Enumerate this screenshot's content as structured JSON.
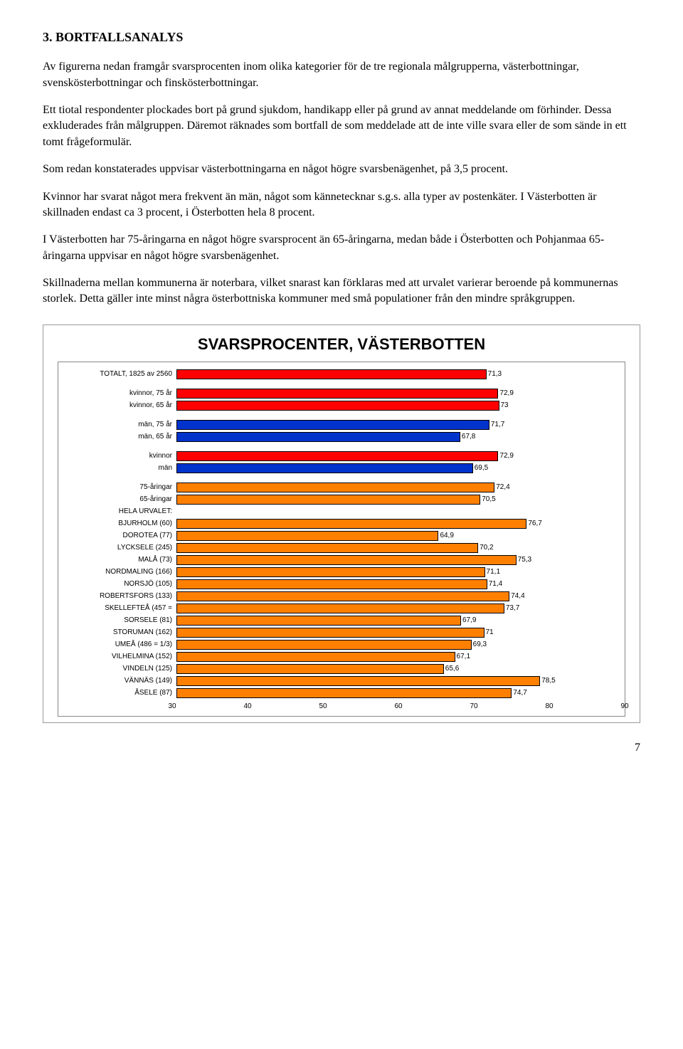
{
  "heading": "3. BORTFALLSANALYS",
  "paragraphs": [
    "Av figurerna nedan framgår svarsprocenten inom olika kategorier för de tre regionala målgrupperna, västerbottningar, svenskösterbottningar och finskösterbottningar.",
    "Ett tiotal respondenter plockades bort på grund sjukdom, handikapp eller på grund av annat meddelande om förhinder. Dessa exkluderades från målgruppen. Däremot räknades som bortfall de som meddelade att de inte ville svara eller de som sände in ett tomt frågeformulär.",
    "Som redan konstaterades uppvisar västerbottningarna en något högre svarsbenägenhet, på 3,5 procent.",
    "Kvinnor har svarat något mera frekvent än män, något som kännetecknar s.g.s. alla typer av postenkäter. I Västerbotten är skillnaden endast ca 3 procent, i Österbotten hela 8 procent.",
    "I Västerbotten har 75-åringarna en något högre svarsprocent än 65-åringarna, medan både i Österbotten och Pohjanmaa 65-åringarna uppvisar en något högre svarsbenägenhet.",
    "Skillnaderna mellan kommunerna är noterbara, vilket snarast kan förklaras med att urvalet varierar beroende på kommunernas storlek. Detta gäller inte minst några österbottniska kommuner med små populationer från den mindre språkgruppen."
  ],
  "chart": {
    "title": "SVARSPROCENTER, VÄSTERBOTTEN",
    "xmin": 30,
    "xmax": 90,
    "xticks": [
      30,
      40,
      50,
      60,
      70,
      80,
      90
    ],
    "label_fontsize": 10,
    "value_fontsize": 10,
    "groups": [
      {
        "rows": [
          {
            "label": "TOTALT, 1825 av 2560",
            "value": 71.3,
            "value_label": "71,3",
            "color": "#ff0000"
          }
        ]
      },
      {
        "rows": [
          {
            "label": "kvinnor, 75 år",
            "value": 72.9,
            "value_label": "72,9",
            "color": "#ff0000"
          },
          {
            "label": "kvinnor, 65 år",
            "value": 73.0,
            "value_label": "73",
            "color": "#ff0000"
          }
        ]
      },
      {
        "rows": [
          {
            "label": "män, 75 år",
            "value": 71.7,
            "value_label": "71,7",
            "color": "#0033cc"
          },
          {
            "label": "män, 65 år",
            "value": 67.8,
            "value_label": "67,8",
            "color": "#0033cc"
          }
        ]
      },
      {
        "rows": [
          {
            "label": "kvinnor",
            "value": 72.9,
            "value_label": "72,9",
            "color": "#ff0000"
          },
          {
            "label": "män",
            "value": 69.5,
            "value_label": "69,5",
            "color": "#0033cc"
          }
        ]
      },
      {
        "rows": [
          {
            "label": "75-åringar",
            "value": 72.4,
            "value_label": "72,4",
            "color": "#ff8000"
          },
          {
            "label": "65-åringar",
            "value": 70.5,
            "value_label": "70,5",
            "color": "#ff8000"
          },
          {
            "label": "HELA URVALET:",
            "value": null,
            "value_label": "",
            "color": ""
          },
          {
            "label": "BJURHOLM (60)",
            "value": 76.7,
            "value_label": "76,7",
            "color": "#ff8000"
          },
          {
            "label": "DOROTEA (77)",
            "value": 64.9,
            "value_label": "64,9",
            "color": "#ff8000"
          },
          {
            "label": "LYCKSELE (245)",
            "value": 70.2,
            "value_label": "70,2",
            "color": "#ff8000"
          },
          {
            "label": "MALÅ (73)",
            "value": 75.3,
            "value_label": "75,3",
            "color": "#ff8000"
          },
          {
            "label": "NORDMALING (166)",
            "value": 71.1,
            "value_label": "71,1",
            "color": "#ff8000"
          },
          {
            "label": "NORSJÖ (105)",
            "value": 71.4,
            "value_label": "71,4",
            "color": "#ff8000"
          },
          {
            "label": "ROBERTSFORS (133)",
            "value": 74.4,
            "value_label": "74,4",
            "color": "#ff8000"
          },
          {
            "label": "SKELLEFTEÅ (457 =",
            "value": 73.7,
            "value_label": "73,7",
            "color": "#ff8000"
          },
          {
            "label": "SORSELE (81)",
            "value": 67.9,
            "value_label": "67,9",
            "color": "#ff8000"
          },
          {
            "label": "STORUMAN (162)",
            "value": 71.0,
            "value_label": "71",
            "color": "#ff8000"
          },
          {
            "label": "UMEÅ (486 = 1/3)",
            "value": 69.3,
            "value_label": "69,3",
            "color": "#ff8000"
          },
          {
            "label": "VILHELMINA (152)",
            "value": 67.1,
            "value_label": "67,1",
            "color": "#ff8000"
          },
          {
            "label": "VINDELN (125)",
            "value": 65.6,
            "value_label": "65,6",
            "color": "#ff8000"
          },
          {
            "label": "VÄNNÄS (149)",
            "value": 78.5,
            "value_label": "78,5",
            "color": "#ff8000"
          },
          {
            "label": "ÅSELE (87)",
            "value": 74.7,
            "value_label": "74,7",
            "color": "#ff8000"
          }
        ]
      }
    ]
  },
  "page_number": "7"
}
